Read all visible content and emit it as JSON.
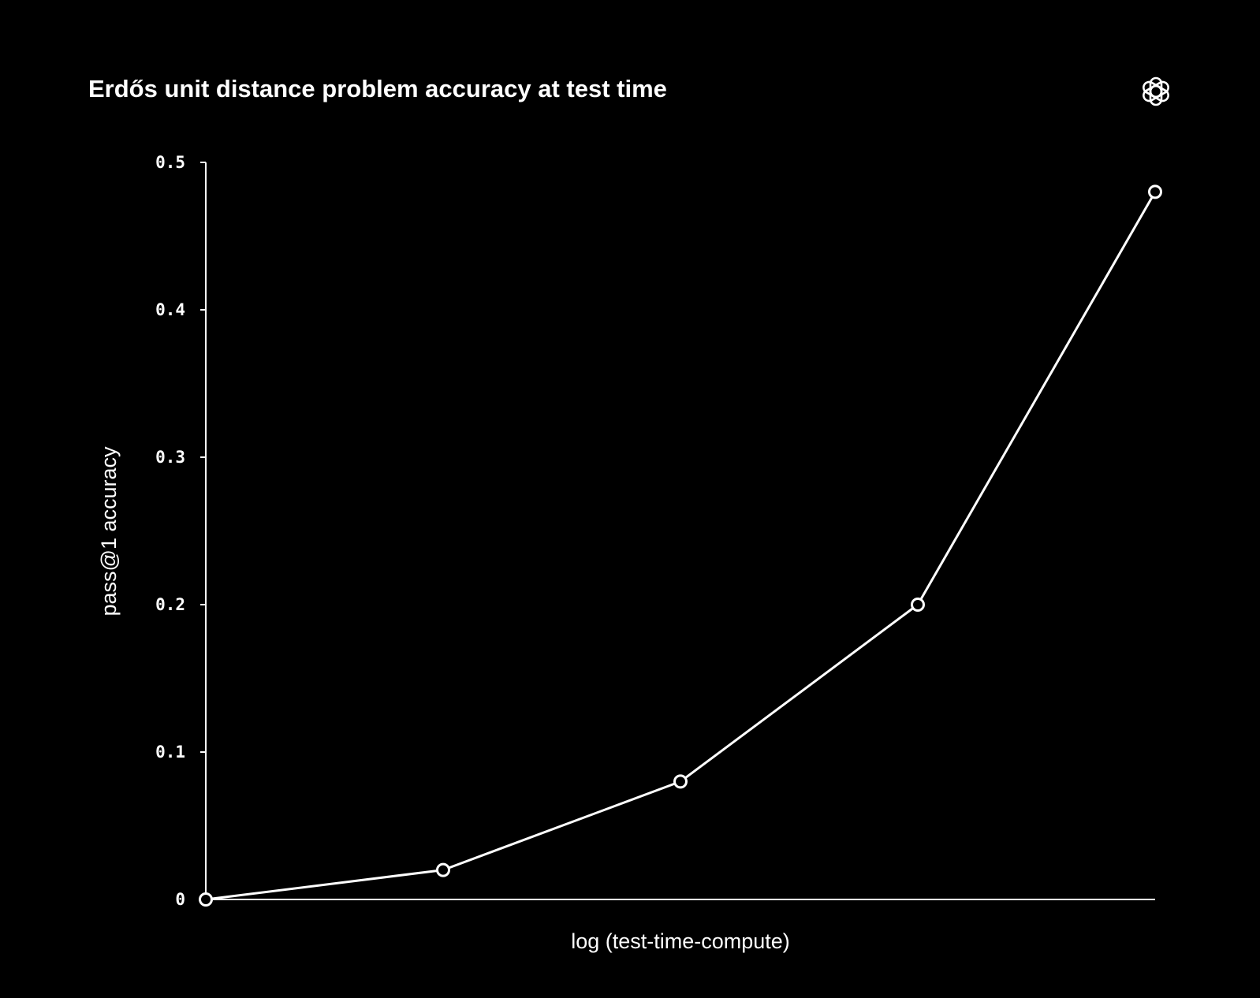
{
  "chart_data": {
    "type": "line",
    "title": "Erdős unit distance problem accuracy at test time",
    "xlabel": "log (test-time-compute)",
    "ylabel": "pass@1 accuracy",
    "ylim": [
      0,
      0.5
    ],
    "y_ticks": [
      {
        "value": 0,
        "label": "0"
      },
      {
        "value": 0.1,
        "label": "0.1"
      },
      {
        "value": 0.2,
        "label": "0.2"
      },
      {
        "value": 0.3,
        "label": "0.3"
      },
      {
        "value": 0.4,
        "label": "0.4"
      },
      {
        "value": 0.5,
        "label": "0.5"
      }
    ],
    "x": [
      0,
      1,
      2,
      3,
      4
    ],
    "series": [
      {
        "values": [
          0,
          0.02,
          0.08,
          0.2,
          0.48
        ]
      }
    ],
    "grid": false,
    "marker": "hollow-circle",
    "colors": {
      "background": "#000000",
      "line": "#ffffff",
      "text": "#ffffff"
    }
  },
  "logo": {
    "icon": "openai-logo-icon"
  }
}
